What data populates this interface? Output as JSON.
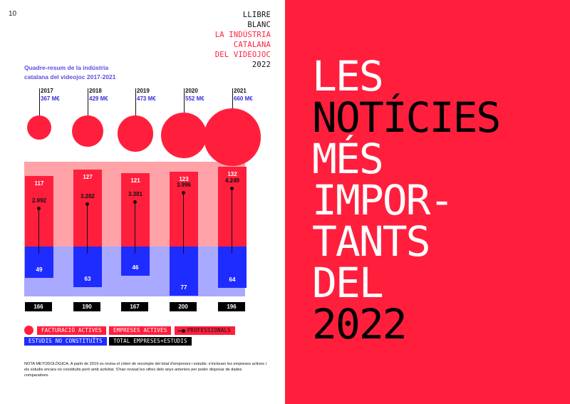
{
  "page_number": "10",
  "brand": {
    "line1": "LLIBRE",
    "line2": "BLANC",
    "line3": "LA INDÚSTRIA",
    "line4": "CATALANA",
    "line5": "DEL VIDEOJOC",
    "line6": "2022"
  },
  "chart_title_line1": "Quadre-resum de la indústria",
  "chart_title_line2": "catalana del videojoc 2017-2021",
  "chart_data": {
    "type": "bar",
    "years": [
      "2017",
      "2018",
      "2019",
      "2020",
      "2021"
    ],
    "revenue": [
      "367 M€",
      "429 M€",
      "473 M€",
      "552 M€",
      "660 M€"
    ],
    "revenue_values": [
      367,
      429,
      473,
      552,
      660
    ],
    "active_companies": [
      117,
      127,
      121,
      123,
      132
    ],
    "professionals": [
      "2.992",
      "3.282",
      "3.381",
      "3.996",
      "4.249"
    ],
    "unconstituted_studios": [
      49,
      63,
      46,
      77,
      64
    ],
    "total": [
      166,
      190,
      167,
      200,
      196
    ],
    "colors": {
      "revenue": "#ff1f3d",
      "companies": "#ff1f3d",
      "studios": "#1f2cff",
      "total": "#000000",
      "band_red": "#ffa3a8",
      "band_blue": "#a9a9ff"
    }
  },
  "legend": {
    "revenue": "FACTURACIÓ ACTIVES",
    "companies": "EMPRESES ACTIVES",
    "professionals": "PROFESSIONALS",
    "studios": "ESTUDIS NO CONSTITUÏTS",
    "total": "TOTAL EMPRESES+ESTUDIS"
  },
  "note": "NOTA METODOLÒGICA. A partir de 2019 es revisa el criteri de recompte del total d'empreses i estudis: s'inclouen les empreses actives i els estudis encara no constituïts però amb activitat. S'han revisat les xifres dels anys anteriors per poder disposar de dades comparatives.",
  "headline": {
    "l1": "LES",
    "l2": "NOTÍCIES",
    "l3": "MÉS",
    "l4": "IMPOR-",
    "l5": "TANTS",
    "l6": "DEL",
    "l7": "2022"
  }
}
